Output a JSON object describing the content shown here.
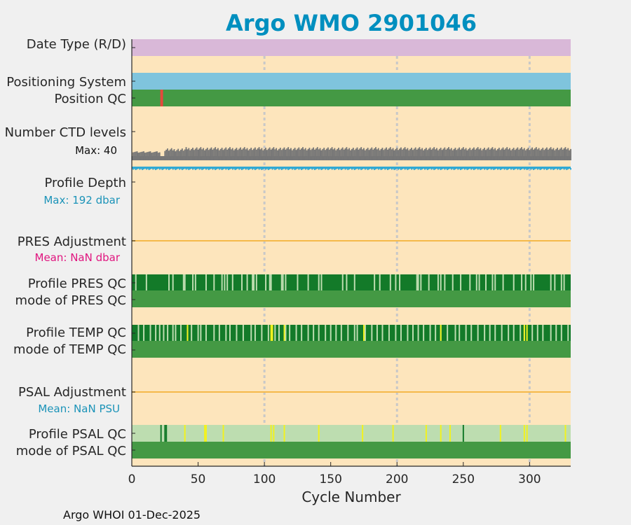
{
  "chart_data": {
    "type": "timeline",
    "title": "Argo WMO 2901046",
    "xlabel": "Cycle Number",
    "xlim": [
      0,
      331
    ],
    "xticks": [
      0,
      50,
      100,
      150,
      200,
      250,
      300
    ],
    "footer": "Argo WHOI 01-Dec-2025",
    "colors": {
      "title": "#008fbf",
      "background": "#fde5bc",
      "qc_good": "#449944",
      "qc_dark": "#137a29",
      "qc_light": "#bdddb0",
      "qc_yellow": "#f2f21e",
      "qc_bad": "#e8483c",
      "date_type": "#d9b8d8",
      "positioning": "#7fc4dd",
      "ctd_levels": "#777777",
      "profile_depth": "#30a9d4",
      "adjustment_line": "#f5b94a",
      "gridline": "#c8c8c8",
      "ctd_max_text": "#111111",
      "depth_max_text": "#1b93b8",
      "pres_mean_text": "#e0157f",
      "psal_mean_text": "#1b93b8"
    },
    "rows": [
      {
        "label": "Date Type (R/D)",
        "kind": "band",
        "color": "date_type"
      },
      {
        "label": "Positioning System",
        "kind": "band",
        "color": "positioning"
      },
      {
        "label": "Position QC",
        "kind": "qc",
        "base": "qc_good",
        "marks": [
          {
            "cycles": [
              22,
              23
            ],
            "color": "qc_bad"
          }
        ]
      },
      {
        "label": "Number CTD levels",
        "kind": "bars",
        "color": "ctd_levels",
        "note": "Max: 40",
        "note_color": "ctd_max_text",
        "max": 40
      },
      {
        "label": "Profile Depth",
        "kind": "depth",
        "color": "profile_depth",
        "note": "Max:  192 dbar",
        "note_color": "depth_max_text",
        "max": 192
      },
      {
        "label": "PRES Adjustment",
        "kind": "line",
        "color": "adjustment_line",
        "note": "Mean:  NaN dbar",
        "note_color": "pres_mean_text"
      },
      {
        "label": "Profile PRES QC",
        "kind": "qc",
        "base": "qc_dark",
        "marks": [
          {
            "cycles": [
              3,
              11,
              28,
              31,
              39,
              40,
              46,
              48,
              56,
              62,
              68,
              70,
              72,
              76,
              83,
              87,
              91,
              92,
              94,
              101,
              104,
              105,
              113,
              114,
              116,
              125,
              133,
              141,
              143,
              159,
              162,
              168,
              183,
              187,
              195,
              199,
              202,
              215,
              216,
              218,
              224,
              231,
              233,
              236,
              242,
              248,
              255,
              260,
              262,
              267,
              272,
              274,
              280,
              288,
              294,
              297,
              301,
              303,
              316,
              319,
              324,
              326
            ],
            "color": "qc_light"
          }
        ]
      },
      {
        "label": "mode of PRES QC",
        "kind": "qc",
        "base": "qc_good",
        "marks": []
      },
      {
        "label": "Profile TEMP QC",
        "kind": "qc",
        "base": "qc_dark",
        "marks": [
          {
            "cycles": [
              5,
              9,
              14,
              18,
              21,
              24,
              27,
              31,
              33,
              37,
              42,
              45,
              50,
              52,
              56,
              62,
              66,
              71,
              74,
              79,
              84,
              90,
              93,
              98,
              103,
              108,
              111,
              116,
              119,
              124,
              128,
              133,
              137,
              141,
              146,
              150,
              154,
              158,
              163,
              168,
              170,
              176,
              181,
              185,
              189,
              194,
              199,
              203,
              208,
              212,
              216,
              220,
              225,
              229,
              233,
              238,
              244,
              247,
              252,
              256,
              261,
              266,
              270,
              274,
              279,
              284,
              288,
              293,
              296,
              302,
              306,
              310,
              316,
              320,
              324,
              329
            ],
            "color": "qc_light"
          },
          {
            "cycles": [
              42,
              105,
              106,
              115,
              175,
              233,
              296,
              298
            ],
            "color": "qc_yellow"
          }
        ]
      },
      {
        "label": "mode of TEMP QC",
        "kind": "qc",
        "base": "qc_good",
        "marks": []
      },
      {
        "label": "PSAL Adjustment",
        "kind": "line",
        "color": "adjustment_line",
        "note": "Mean:  NaN PSU",
        "note_color": "psal_mean_text"
      },
      {
        "label": "Profile PSAL QC",
        "kind": "qc",
        "base": "qc_light",
        "marks": [
          {
            "cycles": [
              22,
              25,
              26,
              250
            ],
            "color": "qc_dark"
          },
          {
            "cycles": [
              40,
              55,
              56,
              69,
              105,
              107,
              115,
              141,
              174,
              197,
              222,
              233,
              240,
              278,
              296,
              298,
              327
            ],
            "color": "qc_yellow"
          }
        ]
      },
      {
        "label": "mode of PSAL QC",
        "kind": "qc",
        "base": "qc_good",
        "marks": []
      }
    ]
  }
}
